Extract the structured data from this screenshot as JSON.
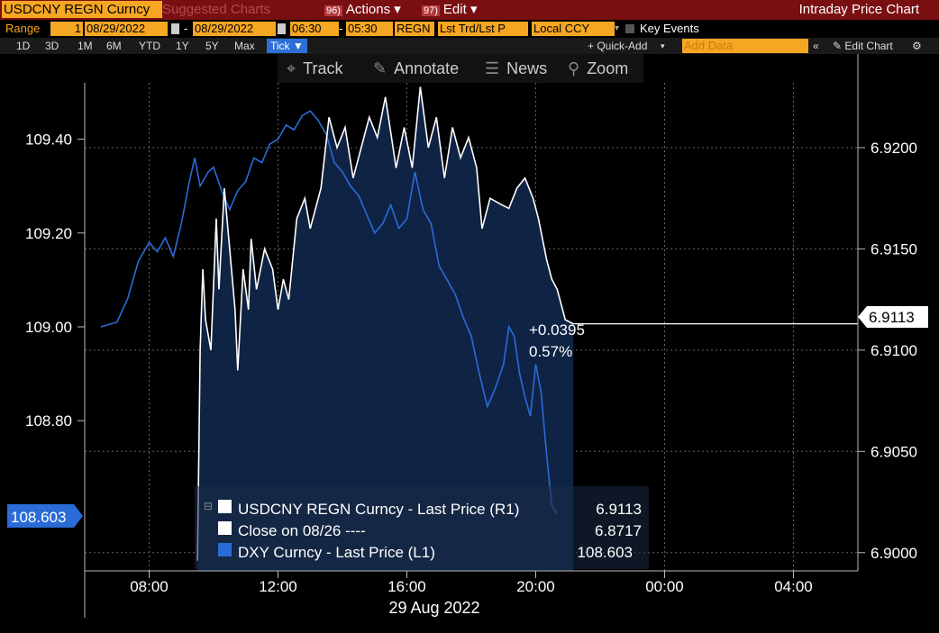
{
  "toolbar": {
    "ticker": "USDCNY REGN Curncy",
    "suggested": "Suggested Charts",
    "actions_num": "96)",
    "actions": "Actions",
    "edit_num": "97)",
    "edit": "Edit",
    "title": "Intraday Price Chart"
  },
  "params": {
    "range_label": "Range",
    "range_num": "1",
    "start_date": "08/29/2022",
    "dash": "-",
    "end_date": "08/29/2022",
    "start_time": "06:30",
    "end_time": "05:30",
    "source": "REGN",
    "field": "Lst Trd/Lst P",
    "currency": "Local CCY",
    "key_events": "Key Events"
  },
  "periods": [
    "1D",
    "3D",
    "1M",
    "6M",
    "YTD",
    "1Y",
    "5Y",
    "Max"
  ],
  "tick_label": "Tick",
  "right_tools": {
    "quick_add": "+ Quick-Add",
    "add_data_placeholder": "Add Data",
    "edit_chart": "Edit Chart"
  },
  "chart_tools": {
    "track": "Track",
    "annotate": "Annotate",
    "news": "News",
    "zoom": "Zoom"
  },
  "chart_data": {
    "type": "line",
    "date_label": "29 Aug 2022",
    "x_ticks": [
      "08:00",
      "12:00",
      "16:00",
      "20:00",
      "00:00",
      "04:00"
    ],
    "left_axis": {
      "ticks": [
        "108.80",
        "109.00",
        "109.20",
        "109.40"
      ],
      "range": [
        108.48,
        109.52
      ]
    },
    "right_axis": {
      "ticks": [
        "6.9000",
        "6.9050",
        "6.9100",
        "6.9150",
        "6.9200"
      ],
      "range": [
        6.8991,
        6.9232
      ]
    },
    "last_label_left": "108.603",
    "last_label_right": "6.9113",
    "change": "+0.0395",
    "change_pct": "0.57%",
    "colors": {
      "usdcny": "#ffffff",
      "dxy": "#2a6bd8",
      "fill": "#0f2445",
      "tag_left": "#2a6bd8"
    },
    "series": [
      {
        "name": "USDCNY REGN Curncy - Last Price (R1)",
        "value": "6.9113",
        "axis": "right",
        "color": "#ffffff",
        "points": [
          [
            "09:30",
            6.8996
          ],
          [
            "09:35",
            6.91
          ],
          [
            "09:40",
            6.914
          ],
          [
            "09:45",
            6.9115
          ],
          [
            "09:55",
            6.91
          ],
          [
            "10:05",
            6.9165
          ],
          [
            "10:10",
            6.913
          ],
          [
            "10:20",
            6.918
          ],
          [
            "10:30",
            6.915
          ],
          [
            "10:40",
            6.912
          ],
          [
            "10:45",
            6.909
          ],
          [
            "10:55",
            6.914
          ],
          [
            "11:05",
            6.912
          ],
          [
            "11:10",
            6.9155
          ],
          [
            "11:20",
            6.913
          ],
          [
            "11:35",
            6.915
          ],
          [
            "11:50",
            6.914
          ],
          [
            "12:00",
            6.912
          ],
          [
            "12:10",
            6.9135
          ],
          [
            "12:20",
            6.9125
          ],
          [
            "12:35",
            6.9165
          ],
          [
            "12:50",
            6.9175
          ],
          [
            "13:00",
            6.916
          ],
          [
            "13:10",
            6.917
          ],
          [
            "13:20",
            6.918
          ],
          [
            "13:35",
            6.9215
          ],
          [
            "13:50",
            6.92
          ],
          [
            "14:05",
            6.921
          ],
          [
            "14:20",
            6.9185
          ],
          [
            "14:35",
            6.92
          ],
          [
            "14:50",
            6.9215
          ],
          [
            "15:05",
            6.9205
          ],
          [
            "15:20",
            6.9225
          ],
          [
            "15:40",
            6.919
          ],
          [
            "15:55",
            6.921
          ],
          [
            "16:10",
            6.919
          ],
          [
            "16:25",
            6.923
          ],
          [
            "16:40",
            6.92
          ],
          [
            "16:55",
            6.9215
          ],
          [
            "17:10",
            6.9185
          ],
          [
            "17:25",
            6.921
          ],
          [
            "17:40",
            6.9195
          ],
          [
            "17:55",
            6.9205
          ],
          [
            "18:10",
            6.919
          ],
          [
            "18:20",
            6.916
          ],
          [
            "18:35",
            6.9175
          ],
          [
            "18:55",
            6.9172
          ],
          [
            "19:10",
            6.917
          ],
          [
            "19:25",
            6.918
          ],
          [
            "19:40",
            6.9185
          ],
          [
            "19:55",
            6.9175
          ],
          [
            "20:05",
            6.9165
          ],
          [
            "20:20",
            6.9145
          ],
          [
            "20:30",
            6.9135
          ],
          [
            "20:40",
            6.913
          ],
          [
            "20:55",
            6.9115
          ],
          [
            "21:10",
            6.9113
          ]
        ]
      },
      {
        "name": "Close on 08/26 ----",
        "value": "6.8717",
        "axis": "right",
        "color": "#ffffff"
      },
      {
        "name": "DXY Curncy - Last Price (L1)",
        "value": "108.603",
        "axis": "left",
        "color": "#2a6bd8",
        "points": [
          [
            "06:30",
            109.0
          ],
          [
            "07:00",
            109.01
          ],
          [
            "07:20",
            109.06
          ],
          [
            "07:40",
            109.14
          ],
          [
            "08:00",
            109.18
          ],
          [
            "08:15",
            109.16
          ],
          [
            "08:30",
            109.19
          ],
          [
            "08:45",
            109.15
          ],
          [
            "09:00",
            109.22
          ],
          [
            "09:15",
            109.31
          ],
          [
            "09:25",
            109.36
          ],
          [
            "09:35",
            109.3
          ],
          [
            "09:50",
            109.33
          ],
          [
            "10:00",
            109.34
          ],
          [
            "10:15",
            109.29
          ],
          [
            "10:30",
            109.25
          ],
          [
            "10:45",
            109.29
          ],
          [
            "11:00",
            109.31
          ],
          [
            "11:15",
            109.36
          ],
          [
            "11:30",
            109.35
          ],
          [
            "11:45",
            109.39
          ],
          [
            "12:00",
            109.4
          ],
          [
            "12:15",
            109.43
          ],
          [
            "12:30",
            109.42
          ],
          [
            "12:45",
            109.45
          ],
          [
            "13:00",
            109.46
          ],
          [
            "13:15",
            109.44
          ],
          [
            "13:30",
            109.41
          ],
          [
            "13:45",
            109.35
          ],
          [
            "14:00",
            109.33
          ],
          [
            "14:15",
            109.3
          ],
          [
            "14:30",
            109.28
          ],
          [
            "14:45",
            109.24
          ],
          [
            "15:00",
            109.2
          ],
          [
            "15:15",
            109.22
          ],
          [
            "15:30",
            109.26
          ],
          [
            "15:45",
            109.21
          ],
          [
            "16:00",
            109.23
          ],
          [
            "16:15",
            109.33
          ],
          [
            "16:30",
            109.25
          ],
          [
            "16:45",
            109.22
          ],
          [
            "17:00",
            109.13
          ],
          [
            "17:15",
            109.1
          ],
          [
            "17:30",
            109.07
          ],
          [
            "17:45",
            109.02
          ],
          [
            "18:00",
            108.98
          ],
          [
            "18:15",
            108.9
          ],
          [
            "18:30",
            108.83
          ],
          [
            "18:45",
            108.87
          ],
          [
            "19:00",
            108.92
          ],
          [
            "19:10",
            109.0
          ],
          [
            "19:20",
            108.98
          ],
          [
            "19:30",
            108.9
          ],
          [
            "19:40",
            108.85
          ],
          [
            "19:50",
            108.81
          ],
          [
            "20:00",
            108.92
          ],
          [
            "20:10",
            108.86
          ],
          [
            "20:20",
            108.73
          ],
          [
            "20:30",
            108.62
          ],
          [
            "20:40",
            108.6
          ]
        ]
      }
    ]
  }
}
